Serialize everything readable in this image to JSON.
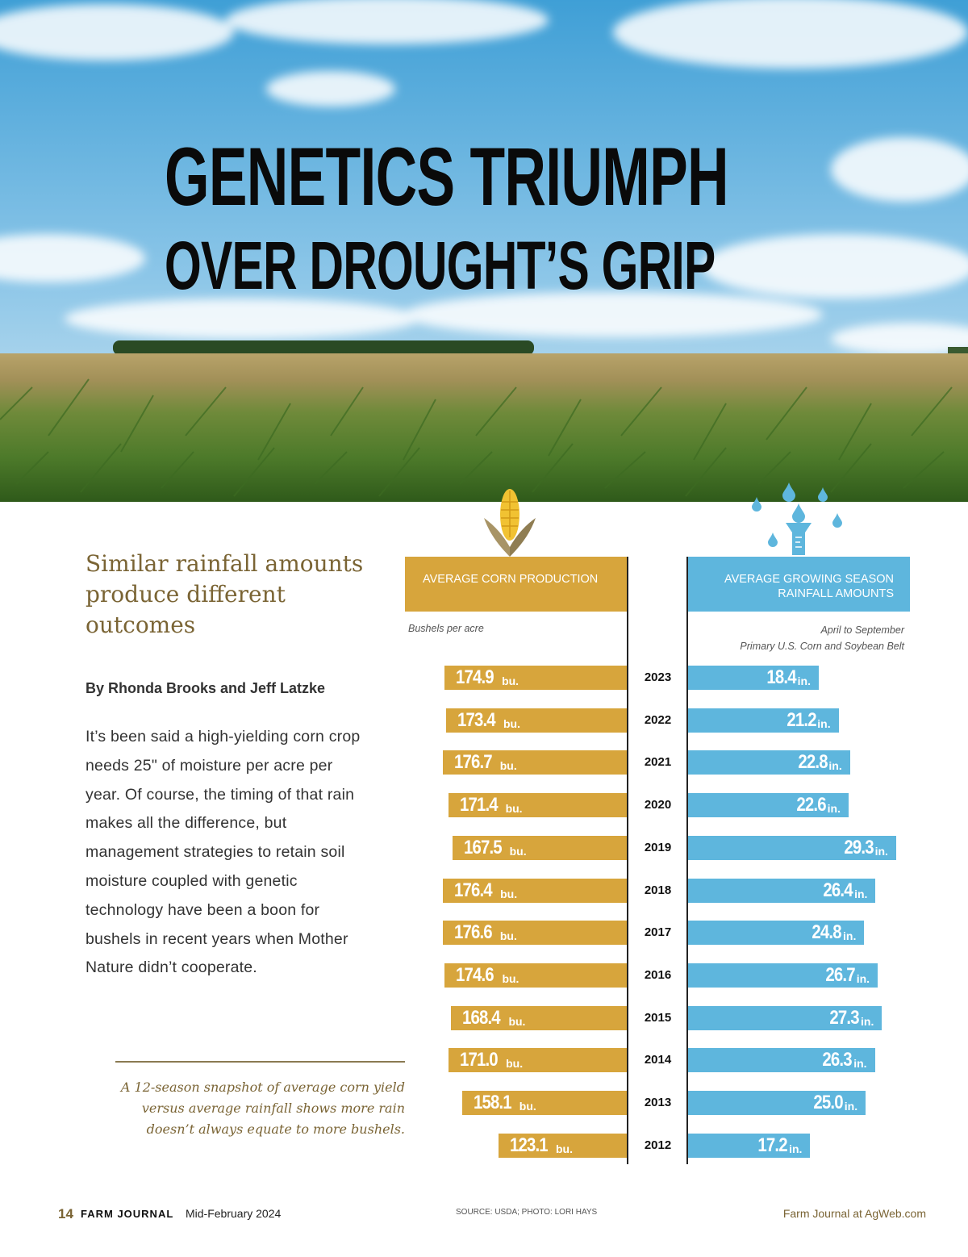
{
  "headline": {
    "line1": "GENETICS TRIUMPH",
    "line2": "OVER DROUGHT’S GRIP"
  },
  "subhead": "Similar rainfall amounts produce different outcomes",
  "byline": "By Rhonda Brooks and Jeff Latzke",
  "body": "It’s been said a high-yielding corn crop needs 25\" of moisture per acre per year. Of course, the timing of that rain makes all the difference, but management strategies to retain soil moisture coupled with genetic technology have been a boon for bushels in recent years when Mother Nature didn’t cooperate.",
  "caption": "A 12-season snapshot of average corn yield versus average rainfall shows more rain doesn’t always equate to more bushels.",
  "chart_data": {
    "type": "bar",
    "categories": [
      "2023",
      "2022",
      "2021",
      "2020",
      "2019",
      "2018",
      "2017",
      "2016",
      "2015",
      "2014",
      "2013",
      "2012"
    ],
    "series": [
      {
        "name": "AVERAGE CORN PRODUCTION",
        "subtitle": "Bushels per acre",
        "unit": "bu.",
        "color": "#d7a53c",
        "values": [
          174.9,
          173.4,
          176.7,
          171.4,
          167.5,
          176.4,
          176.6,
          174.6,
          168.4,
          171.0,
          158.1,
          123.1
        ],
        "labels": [
          "174.9",
          "173.4",
          "176.7",
          "171.4",
          "167.5",
          "176.4",
          "176.6",
          "174.6",
          "168.4",
          "171.0",
          "158.1",
          "123.1"
        ]
      },
      {
        "name": "AVERAGE GROWING SEASON RAINFALL AMOUNTS",
        "subtitle_line1": "April to September",
        "subtitle_line2": "Primary U.S. Corn and Soybean Belt",
        "unit": "in.",
        "color": "#5eb6dd",
        "values": [
          18.4,
          21.2,
          22.8,
          22.6,
          29.3,
          26.4,
          24.8,
          26.7,
          27.3,
          26.3,
          25.0,
          17.2
        ],
        "labels": [
          "18.4",
          "21.2",
          "22.8",
          "22.6",
          "29.3",
          "26.4",
          "24.8",
          "26.7",
          "27.3",
          "26.3",
          "25.0",
          "17.2"
        ]
      }
    ]
  },
  "footer": {
    "page_number": "14",
    "brand": "FARM JOURNAL",
    "issue": "Mid-February 2024",
    "source": "SOURCE: USDA; PHOTO: LORI HAYS",
    "site": "Farm Journal at AgWeb.com"
  }
}
